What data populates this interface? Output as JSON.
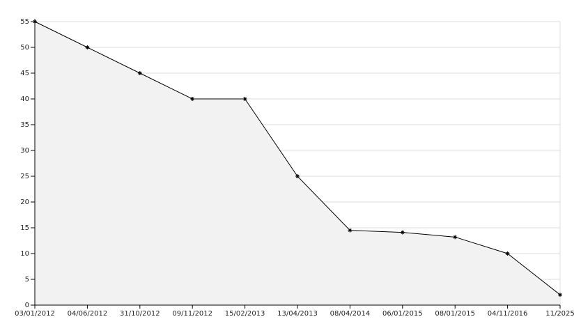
{
  "chart_data": {
    "type": "area",
    "categories": [
      "03/01/2012",
      "04/06/2012",
      "31/10/2012",
      "09/11/2012",
      "15/02/2013",
      "13/04/2013",
      "08/04/2014",
      "06/01/2015",
      "08/01/2015",
      "04/11/2016",
      "11/2025"
    ],
    "values": [
      55,
      50,
      45,
      40,
      40,
      25,
      14.5,
      14.1,
      13.2,
      10,
      2
    ],
    "color": "#000000",
    "fill": "#f2f2f2",
    "ylim": [
      0,
      55
    ],
    "yticks": [
      0,
      5,
      10,
      15,
      20,
      25,
      30,
      35,
      40,
      45,
      50,
      55
    ],
    "grid": true
  }
}
